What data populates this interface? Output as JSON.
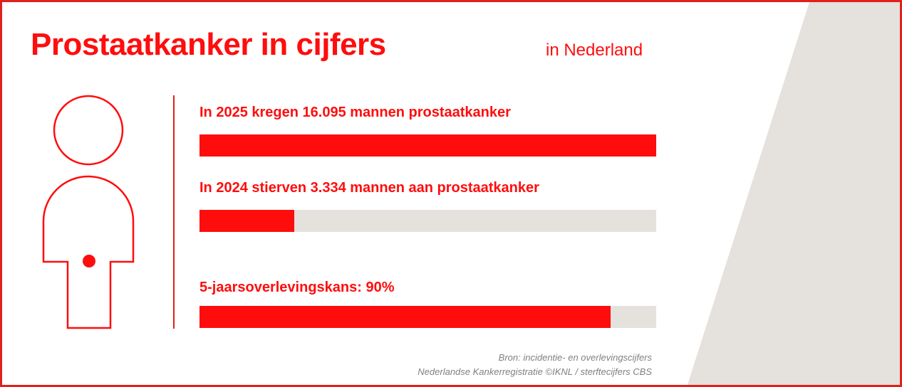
{
  "header": {
    "title": "Prostaatkanker in cijfers",
    "subtitle": "in Nederland"
  },
  "colors": {
    "accent": "#ff0d0d",
    "track": "#e5e1dc",
    "wedge": "#e5e1dc",
    "source_text": "#808080"
  },
  "chart_data": {
    "type": "bar",
    "orientation": "horizontal",
    "series": [
      {
        "label": "In 2025 kregen 16.095 mannen prostaatkanker",
        "value": 16095,
        "fraction": 1.0
      },
      {
        "label": "In 2024 stierven 3.334 mannen aan prostaatkanker",
        "value": 3334,
        "fraction": 0.207
      },
      {
        "label": "5-jaarsoverlevingskans: 90%",
        "value": 90,
        "fraction": 0.9
      }
    ]
  },
  "source": {
    "line1": "Bron: incidentie- en overlevingscijfers",
    "line2": "Nederlandse Kankerregistratie ©IKNL / sterftecijfers CBS"
  }
}
